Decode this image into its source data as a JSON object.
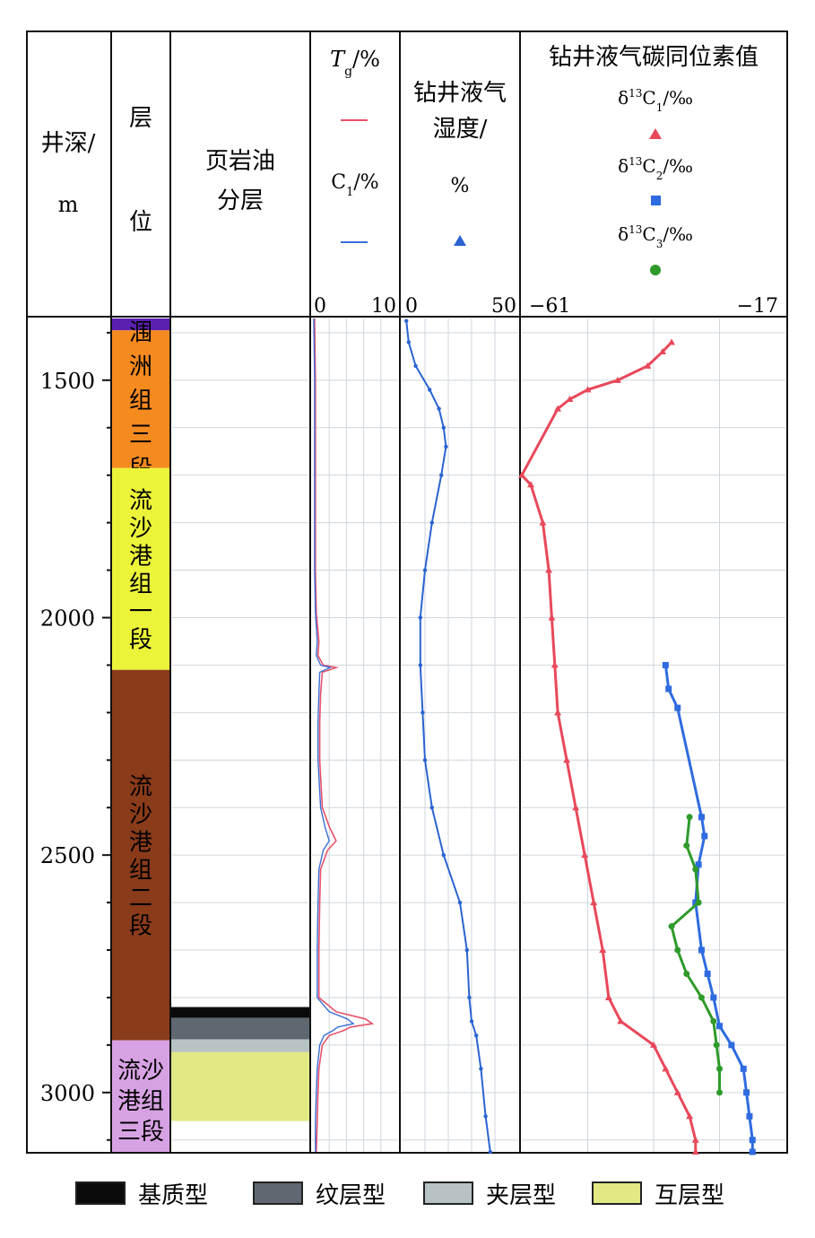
{
  "header": {
    "depth_col": [
      "井深/",
      "m"
    ],
    "layer_col": [
      "层",
      "位"
    ],
    "shale_col": [
      "页岩油",
      "分层"
    ],
    "gas_col": {
      "tg_italic": "T",
      "tg_sub": "g",
      "tg_unit": "/%",
      "c1": "C",
      "c1_sub": "1",
      "c1_unit": "/%",
      "range_min": "0",
      "range_max": "10"
    },
    "wetness_col": {
      "line1": "钻井液气",
      "line2": "湿度/",
      "unit": "%",
      "range_min": "0",
      "range_max": "50"
    },
    "isotope_col": {
      "title": "钻井液气碳同位素值",
      "c1": {
        "delta": "δ",
        "sup": "13",
        "c": "C",
        "sub": "1",
        "unit": "/‰"
      },
      "c2": {
        "delta": "δ",
        "sup": "13",
        "c": "C",
        "sub": "2",
        "unit": "/‰"
      },
      "c3": {
        "delta": "δ",
        "sup": "13",
        "c": "C",
        "sub": "3",
        "unit": "/‰"
      },
      "range_min": "−61",
      "range_max": "−17"
    }
  },
  "colors": {
    "tg": "#e8526b",
    "c1": "#3b6fd6",
    "wetness": "#2a63d1",
    "d13c1": "#e8485a",
    "d13c2": "#2f6be0",
    "d13c3": "#2e9a2a",
    "grid": "#cfd6dc"
  },
  "legend": [
    {
      "label": "基质型",
      "color": "#0b0b0b"
    },
    {
      "label": "纹层型",
      "color": "#5f6870"
    },
    {
      "label": "夹层型",
      "color": "#b7c2c4"
    },
    {
      "label": "互层型",
      "color": "#e2e884"
    }
  ],
  "chart_data": {
    "type": "scatter",
    "depth_axis": {
      "label": "井深/m",
      "range": [
        1370,
        3125
      ],
      "ticks": [
        1500,
        2000,
        2500,
        3000
      ]
    },
    "formations": [
      {
        "name": "",
        "top": 1370,
        "bottom": 1395,
        "color": "#5b1fb0"
      },
      {
        "name": "涠洲组三段",
        "top": 1395,
        "bottom": 1685,
        "color": "#f58a1f"
      },
      {
        "name": "流沙港组一段",
        "top": 1685,
        "bottom": 2110,
        "color": "#ecf43a"
      },
      {
        "name": "流沙港组二段",
        "top": 2110,
        "bottom": 2890,
        "color": "#8a3b1a"
      },
      {
        "name": "流沙港组三段",
        "top": 2890,
        "bottom": 3125,
        "color": "#d7a2e3"
      }
    ],
    "shale_oil_layers": [
      {
        "type": "基质型",
        "top": 2820,
        "bottom": 2843
      },
      {
        "type": "纹层型",
        "top": 2843,
        "bottom": 2888
      },
      {
        "type": "夹层型",
        "top": 2888,
        "bottom": 2915
      },
      {
        "type": "互层型",
        "top": 2915,
        "bottom": 3060
      }
    ],
    "series": [
      {
        "name": "Tg/%",
        "xlim": [
          0,
          10
        ],
        "points": [
          [
            1370,
            0.3
          ],
          [
            1500,
            0.4
          ],
          [
            1700,
            0.4
          ],
          [
            1900,
            0.4
          ],
          [
            1990,
            0.5
          ],
          [
            2050,
            0.8
          ],
          [
            2080,
            0.7
          ],
          [
            2100,
            1.3
          ],
          [
            2105,
            2.8
          ],
          [
            2115,
            1.2
          ],
          [
            2160,
            1.0
          ],
          [
            2220,
            0.9
          ],
          [
            2300,
            0.9
          ],
          [
            2400,
            1.2
          ],
          [
            2440,
            2.0
          ],
          [
            2470,
            2.8
          ],
          [
            2490,
            1.8
          ],
          [
            2530,
            1.0
          ],
          [
            2600,
            0.9
          ],
          [
            2700,
            0.8
          ],
          [
            2800,
            0.8
          ],
          [
            2830,
            2.8
          ],
          [
            2845,
            6.2
          ],
          [
            2855,
            7.0
          ],
          [
            2862,
            4.5
          ],
          [
            2870,
            3.6
          ],
          [
            2880,
            2.0
          ],
          [
            2900,
            1.2
          ],
          [
            2950,
            0.8
          ],
          [
            3000,
            0.7
          ],
          [
            3060,
            0.6
          ],
          [
            3125,
            0.5
          ]
        ]
      },
      {
        "name": "C1/%",
        "xlim": [
          0,
          10
        ],
        "points": [
          [
            1370,
            0.2
          ],
          [
            1500,
            0.3
          ],
          [
            1700,
            0.3
          ],
          [
            1900,
            0.3
          ],
          [
            1990,
            0.4
          ],
          [
            2050,
            0.6
          ],
          [
            2080,
            0.5
          ],
          [
            2100,
            1.0
          ],
          [
            2105,
            2.1
          ],
          [
            2115,
            0.9
          ],
          [
            2160,
            0.8
          ],
          [
            2220,
            0.7
          ],
          [
            2300,
            0.7
          ],
          [
            2400,
            1.0
          ],
          [
            2440,
            1.5
          ],
          [
            2470,
            2.0
          ],
          [
            2490,
            1.3
          ],
          [
            2530,
            0.8
          ],
          [
            2600,
            0.7
          ],
          [
            2700,
            0.6
          ],
          [
            2800,
            0.6
          ],
          [
            2830,
            2.0
          ],
          [
            2845,
            4.1
          ],
          [
            2855,
            4.8
          ],
          [
            2862,
            3.0
          ],
          [
            2870,
            2.4
          ],
          [
            2880,
            1.4
          ],
          [
            2900,
            0.9
          ],
          [
            2950,
            0.6
          ],
          [
            3000,
            0.5
          ],
          [
            3060,
            0.4
          ],
          [
            3125,
            0.4
          ]
        ]
      },
      {
        "name": "钻井液气湿度/%",
        "xlim": [
          0,
          50
        ],
        "points": [
          [
            1375,
            2.0
          ],
          [
            1420,
            3.0
          ],
          [
            1470,
            6.0
          ],
          [
            1520,
            12.0
          ],
          [
            1560,
            16.0
          ],
          [
            1600,
            18.0
          ],
          [
            1640,
            19.0
          ],
          [
            1700,
            17.0
          ],
          [
            1800,
            13.0
          ],
          [
            1900,
            10.0
          ],
          [
            2000,
            8.0
          ],
          [
            2100,
            8.0
          ],
          [
            2200,
            9.0
          ],
          [
            2300,
            10.0
          ],
          [
            2400,
            13.0
          ],
          [
            2500,
            18.0
          ],
          [
            2600,
            25.0
          ],
          [
            2700,
            28.0
          ],
          [
            2800,
            29.0
          ],
          [
            2850,
            30.0
          ],
          [
            2880,
            32.0
          ],
          [
            2950,
            34.0
          ],
          [
            3050,
            36.0
          ],
          [
            3125,
            38.0
          ]
        ]
      },
      {
        "name": "δ13C1/‰",
        "xlim": [
          -61,
          -17
        ],
        "points": [
          [
            1420,
            -36.0
          ],
          [
            1440,
            -37.5
          ],
          [
            1470,
            -40.0
          ],
          [
            1500,
            -45.0
          ],
          [
            1520,
            -50.0
          ],
          [
            1540,
            -53.0
          ],
          [
            1560,
            -55.0
          ],
          [
            1700,
            -61.0
          ],
          [
            1720,
            -59.5
          ],
          [
            1800,
            -57.5
          ],
          [
            1900,
            -56.5
          ],
          [
            2000,
            -56.0
          ],
          [
            2100,
            -55.5
          ],
          [
            2200,
            -55.0
          ],
          [
            2300,
            -53.5
          ],
          [
            2400,
            -52.0
          ],
          [
            2500,
            -50.5
          ],
          [
            2600,
            -49.0
          ],
          [
            2700,
            -47.5
          ],
          [
            2800,
            -46.5
          ],
          [
            2850,
            -44.5
          ],
          [
            2900,
            -39.0
          ],
          [
            2950,
            -37.0
          ],
          [
            3000,
            -35.0
          ],
          [
            3050,
            -33.0
          ],
          [
            3100,
            -32.0
          ],
          [
            3125,
            -32.0
          ]
        ]
      },
      {
        "name": "δ13C2/‰",
        "xlim": [
          -61,
          -17
        ],
        "points": [
          [
            2100,
            -37.0
          ],
          [
            2150,
            -36.5
          ],
          [
            2190,
            -35.0
          ],
          [
            2420,
            -31.0
          ],
          [
            2460,
            -30.5
          ],
          [
            2520,
            -31.5
          ],
          [
            2600,
            -32.0
          ],
          [
            2700,
            -31.0
          ],
          [
            2750,
            -30.0
          ],
          [
            2800,
            -29.0
          ],
          [
            2860,
            -28.0
          ],
          [
            2900,
            -26.0
          ],
          [
            2950,
            -24.0
          ],
          [
            3000,
            -23.5
          ],
          [
            3050,
            -23.0
          ],
          [
            3100,
            -22.5
          ],
          [
            3125,
            -22.5
          ]
        ]
      },
      {
        "name": "δ13C3/‰",
        "xlim": [
          -61,
          -17
        ],
        "points": [
          [
            2420,
            -33.0
          ],
          [
            2480,
            -33.5
          ],
          [
            2530,
            -32.0
          ],
          [
            2600,
            -31.5
          ],
          [
            2650,
            -36.0
          ],
          [
            2700,
            -35.0
          ],
          [
            2750,
            -33.5
          ],
          [
            2800,
            -31.0
          ],
          [
            2850,
            -29.0
          ],
          [
            2900,
            -28.5
          ],
          [
            2950,
            -28.0
          ],
          [
            3000,
            -28.0
          ]
        ]
      }
    ]
  }
}
